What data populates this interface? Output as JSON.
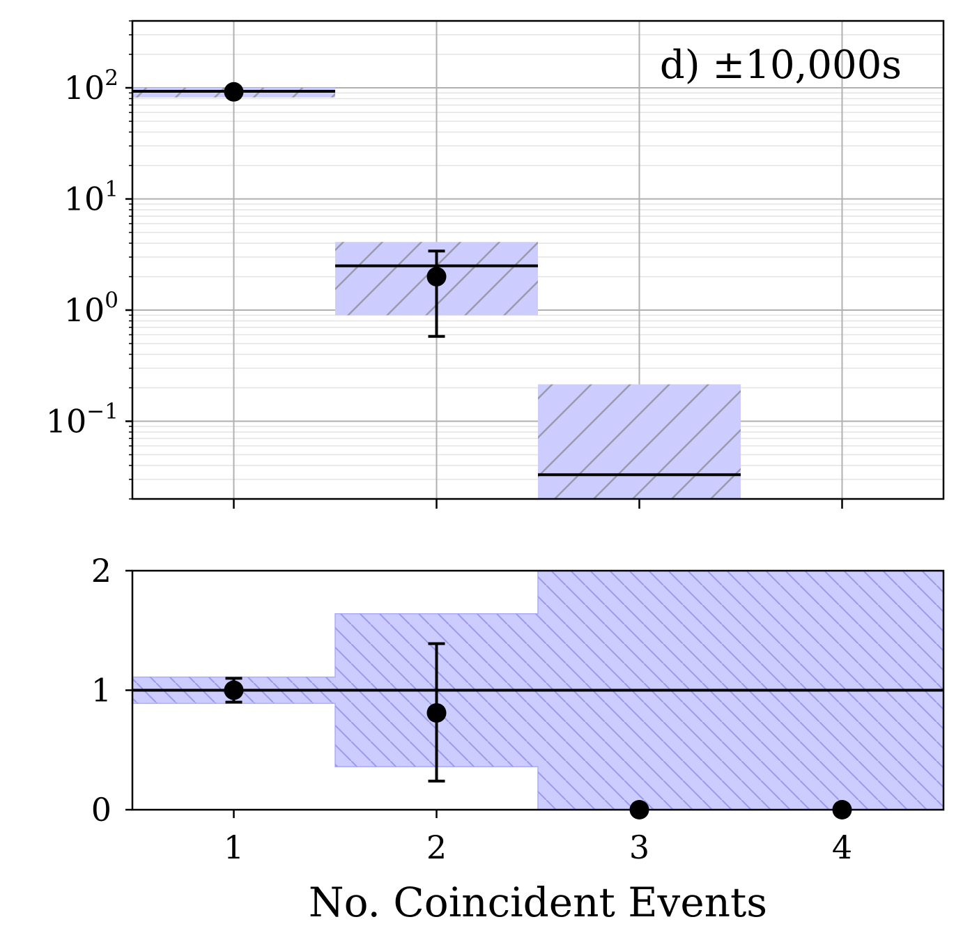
{
  "chart_data": [
    {
      "panel": "top",
      "type": "bar",
      "annotation": "d) ±10,000s",
      "yscale": "log",
      "xlim": [
        0.5,
        4.5
      ],
      "ylim": [
        0.02,
        400
      ],
      "grid": true,
      "x_ticks": [
        1,
        2,
        3,
        4
      ],
      "y_ticks": [
        {
          "base": "10",
          "exp": "2"
        },
        {
          "base": "10",
          "exp": "1"
        },
        {
          "base": "10",
          "exp": "0"
        },
        {
          "base": "10",
          "exp": "−1"
        }
      ],
      "expected_step": [
        {
          "x": 1,
          "value": 93,
          "band": [
            82,
            100
          ]
        },
        {
          "x": 2,
          "value": 2.5,
          "band": [
            0.9,
            4.1
          ]
        },
        {
          "x": 3,
          "value": 0.033,
          "band": [
            0.02,
            0.215
          ]
        }
      ],
      "observed": [
        {
          "x": 1,
          "y": 92,
          "err": [
            92,
            92
          ]
        },
        {
          "x": 2,
          "y": 2.0,
          "err": [
            0.58,
            3.4
          ]
        }
      ],
      "colors": {
        "band": "#ccccff",
        "hatch": "#9999aa",
        "line": "#000000",
        "grid": "#b0b0b0"
      }
    },
    {
      "panel": "bottom",
      "type": "bar",
      "xlabel": "No. Coincident Events",
      "xlim": [
        0.5,
        4.5
      ],
      "ylim": [
        0,
        2
      ],
      "x_ticks": [
        "1",
        "2",
        "3",
        "4"
      ],
      "y_ticks": [
        "0",
        "1",
        "2"
      ],
      "reference_line": 1,
      "band": [
        {
          "x": 1,
          "range": [
            0.89,
            1.11
          ]
        },
        {
          "x": 2,
          "range": [
            0.36,
            1.64
          ]
        },
        {
          "x": 3,
          "range": [
            0,
            2
          ]
        },
        {
          "x": 4,
          "range": [
            0,
            2
          ]
        }
      ],
      "ratio_points": [
        {
          "x": 1,
          "y": 1.0,
          "err": [
            0.9,
            1.1
          ]
        },
        {
          "x": 2,
          "y": 0.81,
          "err": [
            0.24,
            1.39
          ]
        },
        {
          "x": 3,
          "y": 0,
          "err": null
        },
        {
          "x": 4,
          "y": 0,
          "err": null
        }
      ],
      "colors": {
        "band": "#ccccff",
        "hatch": "#9999ee",
        "line": "#000000"
      }
    }
  ]
}
